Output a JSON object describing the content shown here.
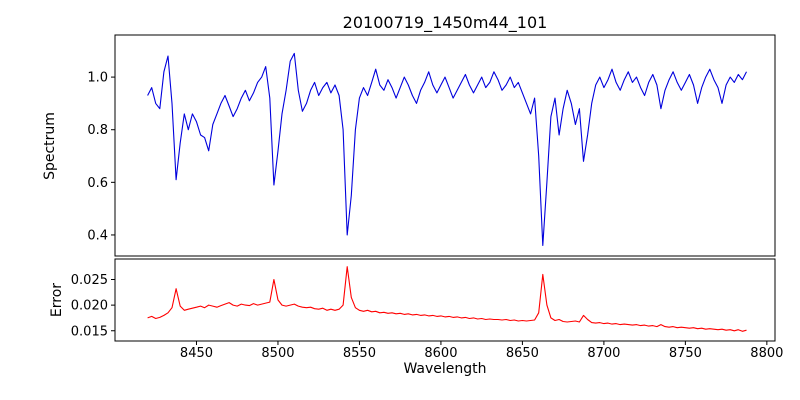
{
  "chart_data": {
    "type": "line",
    "title": "20100719_1450m44_101",
    "xlabel": "Wavelength",
    "x_start": 8420,
    "x_step": 2.5,
    "xlim": [
      8400,
      8805
    ],
    "xticks": [
      8450,
      8500,
      8550,
      8600,
      8650,
      8700,
      8750,
      8800
    ],
    "xtick_labels": [
      "8450",
      "8500",
      "8550",
      "8600",
      "8650",
      "8700",
      "8750",
      "8800"
    ],
    "grid": false,
    "legend": "none",
    "panels": [
      {
        "name": "spectrum",
        "ylabel": "Spectrum",
        "color": "#0000dd",
        "ylim": [
          0.32,
          1.16
        ],
        "yticks": [
          0.4,
          0.6,
          0.8,
          1.0
        ],
        "ytick_labels": [
          "0.4",
          "0.6",
          "0.8",
          "1.0"
        ],
        "values": [
          0.93,
          0.96,
          0.9,
          0.88,
          1.02,
          1.08,
          0.9,
          0.61,
          0.75,
          0.86,
          0.8,
          0.86,
          0.83,
          0.78,
          0.77,
          0.72,
          0.82,
          0.86,
          0.9,
          0.93,
          0.89,
          0.85,
          0.88,
          0.92,
          0.95,
          0.91,
          0.94,
          0.98,
          1.0,
          1.04,
          0.92,
          0.59,
          0.72,
          0.86,
          0.95,
          1.06,
          1.09,
          0.95,
          0.87,
          0.9,
          0.95,
          0.98,
          0.93,
          0.96,
          0.98,
          0.94,
          0.97,
          0.93,
          0.8,
          0.4,
          0.55,
          0.8,
          0.92,
          0.96,
          0.93,
          0.98,
          1.03,
          0.97,
          0.95,
          0.99,
          0.96,
          0.92,
          0.96,
          1.0,
          0.97,
          0.93,
          0.9,
          0.95,
          0.98,
          1.02,
          0.97,
          0.94,
          0.97,
          1.0,
          0.96,
          0.92,
          0.95,
          0.98,
          1.01,
          0.97,
          0.94,
          0.97,
          1.0,
          0.96,
          0.98,
          1.02,
          0.99,
          0.95,
          0.97,
          1.0,
          0.96,
          0.98,
          0.94,
          0.9,
          0.86,
          0.92,
          0.7,
          0.36,
          0.6,
          0.85,
          0.92,
          0.78,
          0.88,
          0.95,
          0.9,
          0.82,
          0.88,
          0.68,
          0.78,
          0.9,
          0.97,
          1.0,
          0.96,
          0.99,
          1.03,
          0.98,
          0.95,
          0.99,
          1.02,
          0.98,
          1.0,
          0.96,
          0.93,
          0.98,
          1.01,
          0.97,
          0.88,
          0.95,
          0.99,
          1.02,
          0.98,
          0.95,
          0.98,
          1.01,
          0.97,
          0.9,
          0.96,
          1.0,
          1.03,
          0.99,
          0.96,
          0.9,
          0.97,
          1.0,
          0.98,
          1.01,
          0.99,
          1.02
        ]
      },
      {
        "name": "error",
        "ylabel": "Error",
        "color": "#ff0000",
        "ylim": [
          0.013,
          0.029
        ],
        "yticks": [
          0.015,
          0.02,
          0.025
        ],
        "ytick_labels": [
          "0.015",
          "0.020",
          "0.025"
        ],
        "values": [
          0.0175,
          0.0178,
          0.0174,
          0.0176,
          0.018,
          0.0185,
          0.0195,
          0.0232,
          0.0198,
          0.019,
          0.0192,
          0.0194,
          0.0196,
          0.0198,
          0.0195,
          0.02,
          0.0198,
          0.0196,
          0.0199,
          0.0202,
          0.0205,
          0.02,
          0.0198,
          0.0202,
          0.02,
          0.0199,
          0.0203,
          0.02,
          0.0202,
          0.0204,
          0.0206,
          0.025,
          0.021,
          0.02,
          0.0198,
          0.02,
          0.0202,
          0.0198,
          0.0196,
          0.0195,
          0.0196,
          0.0193,
          0.0192,
          0.0194,
          0.019,
          0.0192,
          0.019,
          0.0192,
          0.02,
          0.0275,
          0.0215,
          0.0195,
          0.019,
          0.0188,
          0.019,
          0.0187,
          0.0188,
          0.0185,
          0.0186,
          0.0184,
          0.0185,
          0.0183,
          0.0184,
          0.0182,
          0.0183,
          0.0181,
          0.0182,
          0.018,
          0.0181,
          0.0179,
          0.018,
          0.0178,
          0.0179,
          0.0177,
          0.0178,
          0.0176,
          0.0177,
          0.0175,
          0.0176,
          0.0174,
          0.0175,
          0.0173,
          0.0174,
          0.0172,
          0.0173,
          0.0172,
          0.0172,
          0.0171,
          0.0172,
          0.017,
          0.0171,
          0.0169,
          0.017,
          0.0169,
          0.017,
          0.0171,
          0.0185,
          0.026,
          0.02,
          0.0175,
          0.017,
          0.0172,
          0.0168,
          0.0167,
          0.0168,
          0.0169,
          0.0167,
          0.018,
          0.0172,
          0.0166,
          0.0165,
          0.0166,
          0.0164,
          0.0165,
          0.0163,
          0.0164,
          0.0162,
          0.0163,
          0.0162,
          0.0161,
          0.0162,
          0.016,
          0.0161,
          0.0159,
          0.016,
          0.0158,
          0.0162,
          0.0158,
          0.0157,
          0.0158,
          0.0156,
          0.0157,
          0.0156,
          0.0155,
          0.0156,
          0.0154,
          0.0155,
          0.0153,
          0.0154,
          0.0153,
          0.0152,
          0.0153,
          0.0151,
          0.0152,
          0.015,
          0.0152,
          0.0149,
          0.0151
        ]
      }
    ]
  }
}
